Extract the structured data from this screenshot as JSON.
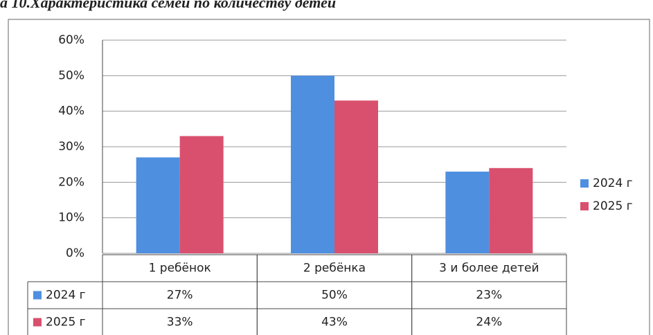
{
  "chart_data": {
    "type": "bar",
    "title": "а 10.Характеристика семей по количеству детей",
    "categories": [
      "1 ребёнок",
      "2 ребёнка",
      "3 и более детей"
    ],
    "series": [
      {
        "name": "2024 г",
        "color": "#4f8fe0",
        "values": [
          27,
          50,
          23
        ],
        "value_labels": [
          "27%",
          "50%",
          "23%"
        ]
      },
      {
        "name": "2025 г",
        "color": "#d9506e",
        "values": [
          33,
          43,
          24
        ],
        "value_labels": [
          "33%",
          "43%",
          "24%"
        ]
      }
    ],
    "ylim": [
      0,
      60
    ],
    "yticks": [
      {
        "value": 0,
        "label": "0%"
      },
      {
        "value": 10,
        "label": "10%"
      },
      {
        "value": 20,
        "label": "20%"
      },
      {
        "value": 30,
        "label": "30%"
      },
      {
        "value": 40,
        "label": "40%"
      },
      {
        "value": 50,
        "label": "50%"
      },
      {
        "value": 60,
        "label": "60%"
      }
    ],
    "grid": true,
    "legend": "right"
  }
}
